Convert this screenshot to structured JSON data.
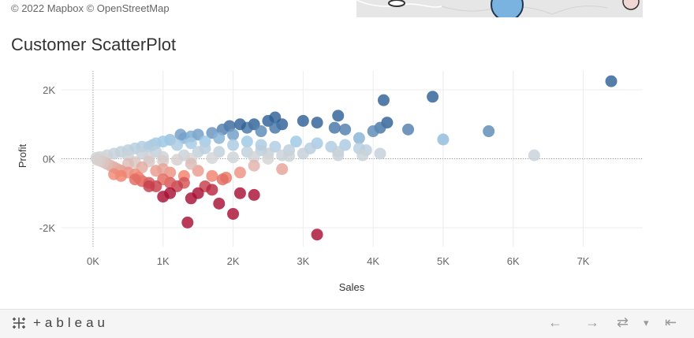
{
  "map": {
    "attribution": "© 2022 Mapbox  © OpenStreetMap",
    "colors": {
      "land": "#e6e6e6",
      "circle_blue": "#7bb3e0",
      "circle_pink": "#f1d6d3"
    }
  },
  "title": "Customer ScatterPlot",
  "chart_data": {
    "type": "scatter",
    "title": "Customer ScatterPlot",
    "xlabel": "Sales",
    "ylabel": "Profit",
    "xlim": [
      -450,
      7850
    ],
    "ylim": [
      -2550,
      2550
    ],
    "x_ticks": [
      0,
      1000,
      2000,
      3000,
      4000,
      5000,
      6000,
      7000
    ],
    "x_tick_labels": [
      "0K",
      "1K",
      "2K",
      "3K",
      "4K",
      "5K",
      "6K",
      "7K"
    ],
    "y_ticks": [
      2000,
      0,
      -2000
    ],
    "y_tick_labels": [
      "2K",
      "0K",
      "-2K"
    ],
    "grid": true,
    "color_encoding": "profit (diverging red → gray → blue)",
    "points": [
      [
        7400,
        2250
      ],
      [
        4850,
        1800
      ],
      [
        4150,
        1700
      ],
      [
        3500,
        1250
      ],
      [
        3000,
        1100
      ],
      [
        3200,
        1050
      ],
      [
        3450,
        900
      ],
      [
        3600,
        850
      ],
      [
        2600,
        1200
      ],
      [
        2700,
        1000
      ],
      [
        2500,
        1100
      ],
      [
        2300,
        1000
      ],
      [
        2200,
        900
      ],
      [
        2100,
        1000
      ],
      [
        1950,
        950
      ],
      [
        1850,
        850
      ],
      [
        1700,
        750
      ],
      [
        1500,
        700
      ],
      [
        1400,
        650
      ],
      [
        1300,
        600
      ],
      [
        1250,
        700
      ],
      [
        1100,
        550
      ],
      [
        1000,
        500
      ],
      [
        900,
        450
      ],
      [
        850,
        400
      ],
      [
        800,
        350
      ],
      [
        700,
        350
      ],
      [
        600,
        300
      ],
      [
        500,
        250
      ],
      [
        400,
        200
      ],
      [
        300,
        150
      ],
      [
        200,
        100
      ],
      [
        100,
        50
      ],
      [
        50,
        30
      ],
      [
        1600,
        500
      ],
      [
        1800,
        600
      ],
      [
        2000,
        700
      ],
      [
        2400,
        800
      ],
      [
        2600,
        900
      ],
      [
        1200,
        400
      ],
      [
        1400,
        450
      ],
      [
        1600,
        300
      ],
      [
        2000,
        400
      ],
      [
        2200,
        500
      ],
      [
        2400,
        400
      ],
      [
        900,
        200
      ],
      [
        700,
        150
      ],
      [
        500,
        100
      ],
      [
        4200,
        1050
      ],
      [
        4100,
        900
      ],
      [
        4000,
        800
      ],
      [
        4500,
        850
      ],
      [
        5650,
        800
      ],
      [
        5000,
        560
      ],
      [
        3800,
        600
      ],
      [
        3600,
        400
      ],
      [
        3200,
        450
      ],
      [
        2900,
        500
      ],
      [
        3100,
        300
      ],
      [
        2800,
        250
      ],
      [
        2600,
        350
      ],
      [
        2400,
        250
      ],
      [
        3400,
        350
      ],
      [
        3800,
        300
      ],
      [
        3500,
        200
      ],
      [
        3000,
        150
      ],
      [
        2700,
        100
      ],
      [
        2500,
        150
      ],
      [
        4100,
        150
      ],
      [
        3900,
        250
      ],
      [
        2200,
        200
      ],
      [
        1800,
        200
      ],
      [
        1500,
        200
      ],
      [
        1300,
        100
      ],
      [
        1000,
        50
      ],
      [
        800,
        30
      ],
      [
        150,
        0
      ],
      [
        6300,
        100
      ],
      [
        3850,
        100
      ],
      [
        3500,
        100
      ],
      [
        2800,
        80
      ],
      [
        2500,
        0
      ],
      [
        2300,
        50
      ],
      [
        2000,
        40
      ],
      [
        1700,
        20
      ],
      [
        1400,
        0
      ],
      [
        1200,
        -30
      ],
      [
        1000,
        -60
      ],
      [
        800,
        -80
      ],
      [
        600,
        -100
      ],
      [
        2700,
        -300
      ],
      [
        2100,
        -400
      ],
      [
        1900,
        -550
      ],
      [
        1700,
        -500
      ],
      [
        1500,
        -350
      ],
      [
        1300,
        -500
      ],
      [
        1100,
        -400
      ],
      [
        1000,
        -300
      ],
      [
        900,
        -350
      ],
      [
        700,
        -250
      ],
      [
        500,
        -150
      ],
      [
        1850,
        -600
      ],
      [
        2300,
        -200
      ],
      [
        1400,
        -150
      ],
      [
        1600,
        -800
      ],
      [
        1700,
        -900
      ],
      [
        1500,
        -1000
      ],
      [
        1300,
        -700
      ],
      [
        1200,
        -800
      ],
      [
        1100,
        -700
      ],
      [
        1000,
        -600
      ],
      [
        900,
        -800
      ],
      [
        800,
        -700
      ],
      [
        700,
        -650
      ],
      [
        650,
        -550
      ],
      [
        600,
        -450
      ],
      [
        500,
        -400
      ],
      [
        400,
        -350
      ],
      [
        350,
        -300
      ],
      [
        300,
        -250
      ],
      [
        250,
        -200
      ],
      [
        200,
        -150
      ],
      [
        150,
        -100
      ],
      [
        100,
        -60
      ],
      [
        60,
        -30
      ],
      [
        1800,
        -1300
      ],
      [
        2000,
        -1600
      ],
      [
        2300,
        -1050
      ],
      [
        2100,
        -1000
      ],
      [
        1400,
        -1150
      ],
      [
        1100,
        -1000
      ],
      [
        1000,
        -1100
      ],
      [
        800,
        -800
      ],
      [
        600,
        -600
      ],
      [
        400,
        -500
      ],
      [
        300,
        -450
      ],
      [
        1350,
        -1850
      ],
      [
        3200,
        -2200
      ]
    ]
  },
  "footer": {
    "brand": "+ableau",
    "nav": {
      "back": "←",
      "forward": "→",
      "repeat": "⇄",
      "dropdown": "▾",
      "collapse": "⇤"
    }
  }
}
